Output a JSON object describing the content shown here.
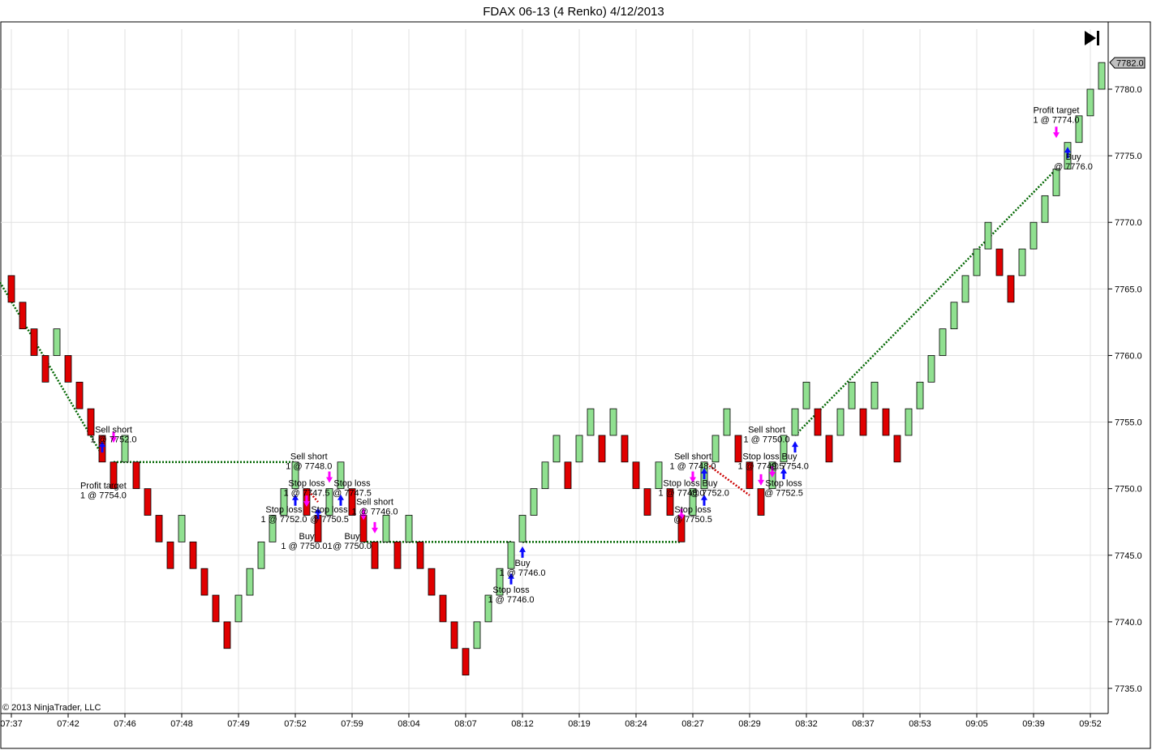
{
  "title": "FDAX 06-13 (4 Renko)  4/12/2013",
  "copyright": "© 2013 NinjaTrader, LLC",
  "icons": {
    "jump_to_end": "skip-to-end-icon"
  },
  "colors": {
    "up": "#90e090",
    "down": "#e00000",
    "up_border": "#000000",
    "down_border": "#000000",
    "buy_arrow": "#0a0aff",
    "sell_arrow": "#ff00ff",
    "win_line": "#006600",
    "loss_line": "#cc0000",
    "grid": "#e0e0e0",
    "last_price_box": "#c0c0c0"
  },
  "chart_data": {
    "type": "renko",
    "brick_size": 4,
    "ylim": [
      7733,
      7784
    ],
    "y_ticks": [
      7735.0,
      7740.0,
      7745.0,
      7750.0,
      7755.0,
      7760.0,
      7765.0,
      7770.0,
      7775.0,
      7780.0
    ],
    "y_tick_labels": [
      "7735.0",
      "7740.0",
      "7745.0",
      "7750.0",
      "7755.0",
      "7760.0",
      "7765.0",
      "7770.0",
      "7775.0",
      "7780.0"
    ],
    "last_price": "7782.0",
    "x_tick_labels": [
      {
        "bar": 0,
        "label": "07:37"
      },
      {
        "bar": 5,
        "label": "07:42"
      },
      {
        "bar": 10,
        "label": "07:46"
      },
      {
        "bar": 15,
        "label": "07:48"
      },
      {
        "bar": 20,
        "label": "07:49"
      },
      {
        "bar": 25,
        "label": "07:52"
      },
      {
        "bar": 30,
        "label": "07:59"
      },
      {
        "bar": 35,
        "label": "08:04"
      },
      {
        "bar": 40,
        "label": "08:07"
      },
      {
        "bar": 45,
        "label": "08:12"
      },
      {
        "bar": 50,
        "label": "08:19"
      },
      {
        "bar": 55,
        "label": "08:24"
      },
      {
        "bar": 60,
        "label": "08:27"
      },
      {
        "bar": 65,
        "label": "08:29"
      },
      {
        "bar": 70,
        "label": "08:32"
      },
      {
        "bar": 75,
        "label": "08:37"
      },
      {
        "bar": 80,
        "label": "08:53"
      },
      {
        "bar": 85,
        "label": "09:05"
      },
      {
        "bar": 90,
        "label": "09:39"
      },
      {
        "bar": 95,
        "label": "09:52"
      }
    ],
    "bricks": [
      {
        "d": -1,
        "o": 7766,
        "c": 7764
      },
      {
        "d": -1,
        "o": 7764,
        "c": 7762
      },
      {
        "d": -1,
        "o": 7762,
        "c": 7760
      },
      {
        "d": -1,
        "o": 7760,
        "c": 7758
      },
      {
        "d": 1,
        "o": 7760,
        "c": 7762
      },
      {
        "d": -1,
        "o": 7760,
        "c": 7758
      },
      {
        "d": -1,
        "o": 7758,
        "c": 7756
      },
      {
        "d": -1,
        "o": 7756,
        "c": 7754
      },
      {
        "d": -1,
        "o": 7754,
        "c": 7752
      },
      {
        "d": -1,
        "o": 7752,
        "c": 7750
      },
      {
        "d": 1,
        "o": 7752,
        "c": 7754
      },
      {
        "d": -1,
        "o": 7752,
        "c": 7750
      },
      {
        "d": -1,
        "o": 7750,
        "c": 7748
      },
      {
        "d": -1,
        "o": 7748,
        "c": 7746
      },
      {
        "d": -1,
        "o": 7746,
        "c": 7744
      },
      {
        "d": 1,
        "o": 7746,
        "c": 7748
      },
      {
        "d": -1,
        "o": 7746,
        "c": 7744
      },
      {
        "d": -1,
        "o": 7744,
        "c": 7742
      },
      {
        "d": -1,
        "o": 7742,
        "c": 7740
      },
      {
        "d": -1,
        "o": 7740,
        "c": 7738
      },
      {
        "d": 1,
        "o": 7740,
        "c": 7742
      },
      {
        "d": 1,
        "o": 7742,
        "c": 7744
      },
      {
        "d": 1,
        "o": 7744,
        "c": 7746
      },
      {
        "d": 1,
        "o": 7746,
        "c": 7748
      },
      {
        "d": 1,
        "o": 7748,
        "c": 7750
      },
      {
        "d": 1,
        "o": 7750,
        "c": 7752
      },
      {
        "d": -1,
        "o": 7750,
        "c": 7748
      },
      {
        "d": -1,
        "o": 7748,
        "c": 7746
      },
      {
        "d": 1,
        "o": 7748,
        "c": 7750
      },
      {
        "d": 1,
        "o": 7750,
        "c": 7752
      },
      {
        "d": -1,
        "o": 7750,
        "c": 7748
      },
      {
        "d": -1,
        "o": 7748,
        "c": 7746
      },
      {
        "d": -1,
        "o": 7746,
        "c": 7744
      },
      {
        "d": 1,
        "o": 7746,
        "c": 7748
      },
      {
        "d": -1,
        "o": 7746,
        "c": 7744
      },
      {
        "d": 1,
        "o": 7746,
        "c": 7748
      },
      {
        "d": -1,
        "o": 7746,
        "c": 7744
      },
      {
        "d": -1,
        "o": 7744,
        "c": 7742
      },
      {
        "d": -1,
        "o": 7742,
        "c": 7740
      },
      {
        "d": -1,
        "o": 7740,
        "c": 7738
      },
      {
        "d": -1,
        "o": 7738,
        "c": 7736
      },
      {
        "d": 1,
        "o": 7738,
        "c": 7740
      },
      {
        "d": 1,
        "o": 7740,
        "c": 7742
      },
      {
        "d": 1,
        "o": 7742,
        "c": 7744
      },
      {
        "d": 1,
        "o": 7744,
        "c": 7746
      },
      {
        "d": 1,
        "o": 7746,
        "c": 7748
      },
      {
        "d": 1,
        "o": 7748,
        "c": 7750
      },
      {
        "d": 1,
        "o": 7750,
        "c": 7752
      },
      {
        "d": 1,
        "o": 7752,
        "c": 7754
      },
      {
        "d": -1,
        "o": 7752,
        "c": 7750
      },
      {
        "d": 1,
        "o": 7752,
        "c": 7754
      },
      {
        "d": 1,
        "o": 7754,
        "c": 7756
      },
      {
        "d": -1,
        "o": 7754,
        "c": 7752
      },
      {
        "d": 1,
        "o": 7754,
        "c": 7756
      },
      {
        "d": -1,
        "o": 7754,
        "c": 7752
      },
      {
        "d": -1,
        "o": 7752,
        "c": 7750
      },
      {
        "d": -1,
        "o": 7750,
        "c": 7748
      },
      {
        "d": 1,
        "o": 7750,
        "c": 7752
      },
      {
        "d": -1,
        "o": 7750,
        "c": 7748
      },
      {
        "d": -1,
        "o": 7748,
        "c": 7746
      },
      {
        "d": 1,
        "o": 7748,
        "c": 7750
      },
      {
        "d": 1,
        "o": 7750,
        "c": 7752
      },
      {
        "d": 1,
        "o": 7752,
        "c": 7754
      },
      {
        "d": 1,
        "o": 7754,
        "c": 7756
      },
      {
        "d": -1,
        "o": 7754,
        "c": 7752
      },
      {
        "d": -1,
        "o": 7752,
        "c": 7750
      },
      {
        "d": -1,
        "o": 7750,
        "c": 7748
      },
      {
        "d": 1,
        "o": 7750,
        "c": 7752
      },
      {
        "d": 1,
        "o": 7752,
        "c": 7754
      },
      {
        "d": 1,
        "o": 7754,
        "c": 7756
      },
      {
        "d": 1,
        "o": 7756,
        "c": 7758
      },
      {
        "d": -1,
        "o": 7756,
        "c": 7754
      },
      {
        "d": -1,
        "o": 7754,
        "c": 7752
      },
      {
        "d": 1,
        "o": 7754,
        "c": 7756
      },
      {
        "d": 1,
        "o": 7756,
        "c": 7758
      },
      {
        "d": -1,
        "o": 7756,
        "c": 7754
      },
      {
        "d": 1,
        "o": 7756,
        "c": 7758
      },
      {
        "d": -1,
        "o": 7756,
        "c": 7754
      },
      {
        "d": -1,
        "o": 7754,
        "c": 7752
      },
      {
        "d": 1,
        "o": 7754,
        "c": 7756
      },
      {
        "d": 1,
        "o": 7756,
        "c": 7758
      },
      {
        "d": 1,
        "o": 7758,
        "c": 7760
      },
      {
        "d": 1,
        "o": 7760,
        "c": 7762
      },
      {
        "d": 1,
        "o": 7762,
        "c": 7764
      },
      {
        "d": 1,
        "o": 7764,
        "c": 7766
      },
      {
        "d": 1,
        "o": 7766,
        "c": 7768
      },
      {
        "d": 1,
        "o": 7768,
        "c": 7770
      },
      {
        "d": -1,
        "o": 7768,
        "c": 7766
      },
      {
        "d": -1,
        "o": 7766,
        "c": 7764
      },
      {
        "d": 1,
        "o": 7766,
        "c": 7768
      },
      {
        "d": 1,
        "o": 7768,
        "c": 7770
      },
      {
        "d": 1,
        "o": 7770,
        "c": 7772
      },
      {
        "d": 1,
        "o": 7772,
        "c": 7774
      },
      {
        "d": 1,
        "o": 7774,
        "c": 7776
      },
      {
        "d": 1,
        "o": 7776,
        "c": 7778
      },
      {
        "d": 1,
        "o": 7778,
        "c": 7780
      },
      {
        "d": 1,
        "o": 7780,
        "c": 7782
      }
    ],
    "trade_lines": [
      {
        "from": [
          -1,
          7765.5
        ],
        "to": [
          8,
          7752.5
        ],
        "result": "win"
      },
      {
        "from": [
          9,
          7752
        ],
        "to": [
          25,
          7752
        ],
        "result": "win"
      },
      {
        "from": [
          26,
          7750.0
        ],
        "to": [
          27,
          7749
        ],
        "result": "loss"
      },
      {
        "from": [
          31,
          7746
        ],
        "to": [
          44,
          7746
        ],
        "result": "win"
      },
      {
        "from": [
          45,
          7746
        ],
        "to": [
          59,
          7746
        ],
        "result": "win"
      },
      {
        "from": [
          61,
          7752
        ],
        "to": [
          65,
          7749.5
        ],
        "result": "loss"
      },
      {
        "from": [
          69,
          7754
        ],
        "to": [
          92,
          7774
        ],
        "result": "win"
      }
    ],
    "markers": [
      {
        "bar": 8,
        "price": 7753.2,
        "kind": "buy"
      },
      {
        "bar": 9,
        "price": 7753.8,
        "kind": "sell"
      },
      {
        "bar": 25,
        "price": 7749.2,
        "kind": "buy"
      },
      {
        "bar": 26,
        "price": 7749.0,
        "kind": "sell"
      },
      {
        "bar": 27,
        "price": 7748.2,
        "kind": "buy"
      },
      {
        "bar": 28,
        "price": 7750.8,
        "kind": "sell"
      },
      {
        "bar": 29,
        "price": 7749.2,
        "kind": "buy"
      },
      {
        "bar": 31,
        "price": 7748.0,
        "kind": "sell"
      },
      {
        "bar": 32,
        "price": 7747.0,
        "kind": "sell"
      },
      {
        "bar": 44,
        "price": 7743.3,
        "kind": "buy"
      },
      {
        "bar": 45,
        "price": 7745.3,
        "kind": "buy"
      },
      {
        "bar": 59,
        "price": 7748.0,
        "kind": "sell"
      },
      {
        "bar": 60,
        "price": 7750.8,
        "kind": "sell"
      },
      {
        "bar": 61,
        "price": 7751.2,
        "kind": "buy"
      },
      {
        "bar": 61,
        "price": 7749.2,
        "kind": "buy"
      },
      {
        "bar": 66,
        "price": 7750.6,
        "kind": "sell"
      },
      {
        "bar": 67,
        "price": 7751.2,
        "kind": "sell"
      },
      {
        "bar": 68,
        "price": 7751.2,
        "kind": "buy"
      },
      {
        "bar": 69,
        "price": 7753.2,
        "kind": "buy"
      },
      {
        "bar": 92,
        "price": 7776.7,
        "kind": "sell"
      },
      {
        "bar": 93,
        "price": 7775.3,
        "kind": "buy"
      }
    ],
    "annotations": [
      {
        "bar": 9.0,
        "price": 7754.2,
        "lines": [
          "Sell short",
          "1 @ 7752.0"
        ]
      },
      {
        "bar": 8.1,
        "price": 7750.0,
        "lines": [
          "Profit target",
          "1 @ 7754.0"
        ]
      },
      {
        "bar": 26.2,
        "price": 7752.2,
        "lines": [
          "Sell short",
          "1 @ 7748.0"
        ]
      },
      {
        "bar": 26.0,
        "price": 7750.2,
        "lines": [
          "Stop loss",
          "1 @ 7747.5"
        ]
      },
      {
        "bar": 30.0,
        "price": 7750.2,
        "lines": [
          "Stop loss",
          "@ 7747.5"
        ]
      },
      {
        "bar": 24.0,
        "price": 7748.2,
        "lines": [
          "Stop loss",
          "1 @ 7752.0"
        ]
      },
      {
        "bar": 28.0,
        "price": 7748.2,
        "lines": [
          "Stop loss",
          "@ 7750.5"
        ]
      },
      {
        "bar": 32.0,
        "price": 7748.8,
        "lines": [
          "Sell short",
          "1 @ 7746.0"
        ]
      },
      {
        "bar": 26.0,
        "price": 7746.2,
        "lines": [
          "Buy",
          "1 @ 7750.01"
        ]
      },
      {
        "bar": 30.0,
        "price": 7746.2,
        "lines": [
          "Buy",
          "@ 7750.0"
        ]
      },
      {
        "bar": 45.0,
        "price": 7744.2,
        "lines": [
          "Buy",
          "1 @ 7746.0"
        ]
      },
      {
        "bar": 44.0,
        "price": 7742.2,
        "lines": [
          "Stop loss",
          "1 @ 7746.0"
        ]
      },
      {
        "bar": 60.0,
        "price": 7752.2,
        "lines": [
          "Sell short",
          "1 @ 7748.0"
        ]
      },
      {
        "bar": 59.0,
        "price": 7750.2,
        "lines": [
          "Stop loss",
          "1 @ 7748.0"
        ]
      },
      {
        "bar": 61.5,
        "price": 7750.2,
        "lines": [
          "Buy",
          "@ 7752.0"
        ]
      },
      {
        "bar": 60.0,
        "price": 7748.2,
        "lines": [
          "Stop loss",
          "@ 7750.5"
        ]
      },
      {
        "bar": 66.5,
        "price": 7754.2,
        "lines": [
          "Sell short",
          "1 @ 7750.0"
        ]
      },
      {
        "bar": 66.0,
        "price": 7752.2,
        "lines": [
          "Stop loss",
          "1 @ 7749.5"
        ]
      },
      {
        "bar": 68.5,
        "price": 7752.2,
        "lines": [
          "Buy",
          "@ 7754.0"
        ]
      },
      {
        "bar": 68.0,
        "price": 7750.2,
        "lines": [
          "Stop loss",
          "@ 7752.5"
        ]
      },
      {
        "bar": 92.0,
        "price": 7778.2,
        "lines": [
          "Profit target",
          "1 @ 7774.0"
        ]
      },
      {
        "bar": 93.5,
        "price": 7774.7,
        "lines": [
          "Buy",
          "@ 7776.0"
        ]
      }
    ]
  }
}
